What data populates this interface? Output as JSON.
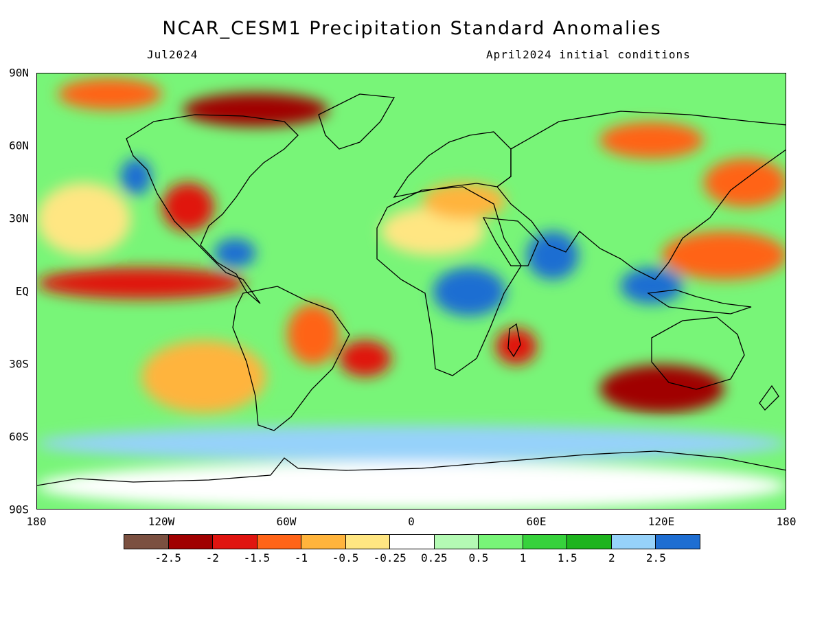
{
  "title": "NCAR_CESM1 Precipitation Standard Anomalies",
  "subtitle_left": "Jul2024",
  "subtitle_right": "April2024 initial conditions",
  "lat_labels": [
    "90N",
    "60N",
    "30N",
    "EQ",
    "30S",
    "60S",
    "90S"
  ],
  "lon_labels": [
    "180",
    "120W",
    "60W",
    "0",
    "60E",
    "120E",
    "180"
  ],
  "colorbar": {
    "colors": [
      "#7b5040",
      "#a00000",
      "#e01510",
      "#ff6418",
      "#ffb43c",
      "#ffe682",
      "#ffffff",
      "#b4fab4",
      "#78f578",
      "#37d23c",
      "#1eb41e",
      "#96d2fa",
      "#1e6ed2"
    ],
    "labels": [
      "-2.5",
      "-2",
      "-1.5",
      "-1",
      "-0.5",
      "-0.25",
      "0.25",
      "0.5",
      "1",
      "1.5",
      "2",
      "2.5"
    ]
  },
  "map": {
    "projection": "cylindrical equidistant",
    "lon_range": [
      -180,
      180
    ],
    "lat_range": [
      -90,
      90
    ],
    "field": "precipitation standardized anomaly",
    "background_color": "#78f578",
    "regions": [
      {
        "name": "tropical-pacific-dry-band",
        "lon": [
          -180,
          -80
        ],
        "lat": [
          -3,
          10
        ],
        "value": -2
      },
      {
        "name": "north-pacific-dry",
        "lon": [
          -180,
          -135
        ],
        "lat": [
          15,
          45
        ],
        "value": -0.5
      },
      {
        "name": "arctic-canada-dry",
        "lon": [
          -110,
          -40
        ],
        "lat": [
          68,
          82
        ],
        "value": -2.5
      },
      {
        "name": "chukchi-dry",
        "lon": [
          -170,
          -120
        ],
        "lat": [
          75,
          88
        ],
        "value": -1.5
      },
      {
        "name": "western-us-dry",
        "lon": [
          -120,
          -95
        ],
        "lat": [
          25,
          45
        ],
        "value": -2
      },
      {
        "name": "gulf-alaska-wet",
        "lon": [
          -140,
          -125
        ],
        "lat": [
          40,
          55
        ],
        "value": 2.5
      },
      {
        "name": "central-america-wet",
        "lon": [
          -95,
          -75
        ],
        "lat": [
          10,
          22
        ],
        "value": 2.5
      },
      {
        "name": "brazil-dry",
        "lon": [
          -60,
          -35
        ],
        "lat": [
          -30,
          -5
        ],
        "value": -1.5
      },
      {
        "name": "south-atlantic-dry",
        "lon": [
          -35,
          -10
        ],
        "lat": [
          -35,
          -20
        ],
        "value": -2
      },
      {
        "name": "southeast-pacific-dry",
        "lon": [
          -130,
          -70
        ],
        "lat": [
          -50,
          -20
        ],
        "value": -1
      },
      {
        "name": "sahara-dry",
        "lon": [
          -15,
          35
        ],
        "lat": [
          15,
          35
        ],
        "value": -0.5
      },
      {
        "name": "mediterranean-dry",
        "lon": [
          5,
          45
        ],
        "lat": [
          30,
          45
        ],
        "value": -1
      },
      {
        "name": "east-africa-wet",
        "lon": [
          10,
          45
        ],
        "lat": [
          -10,
          10
        ],
        "value": 2.5
      },
      {
        "name": "arabian-sea-wet",
        "lon": [
          55,
          80
        ],
        "lat": [
          5,
          25
        ],
        "value": 2.5
      },
      {
        "name": "madagascar-dry",
        "lon": [
          40,
          60
        ],
        "lat": [
          -30,
          -15
        ],
        "value": -2
      },
      {
        "name": "siberia-dry",
        "lon": [
          90,
          140
        ],
        "lat": [
          55,
          70
        ],
        "value": -1.5
      },
      {
        "name": "north-pacific-west-dry",
        "lon": [
          140,
          180
        ],
        "lat": [
          35,
          55
        ],
        "value": -1.5
      },
      {
        "name": "western-pacific-dry",
        "lon": [
          120,
          180
        ],
        "lat": [
          5,
          25
        ],
        "value": -1.5
      },
      {
        "name": "indonesia-wet",
        "lon": [
          100,
          130
        ],
        "lat": [
          -5,
          10
        ],
        "value": 2.5
      },
      {
        "name": "southern-australia-dry",
        "lon": [
          90,
          150
        ],
        "lat": [
          -50,
          -30
        ],
        "value": -2.5
      },
      {
        "name": "southern-ocean-wet",
        "lon": [
          -180,
          180
        ],
        "lat": [
          -70,
          -55
        ],
        "value": 2
      },
      {
        "name": "antarctica-neutral",
        "lon": [
          -180,
          180
        ],
        "lat": [
          -90,
          -70
        ],
        "value": 0
      }
    ]
  }
}
